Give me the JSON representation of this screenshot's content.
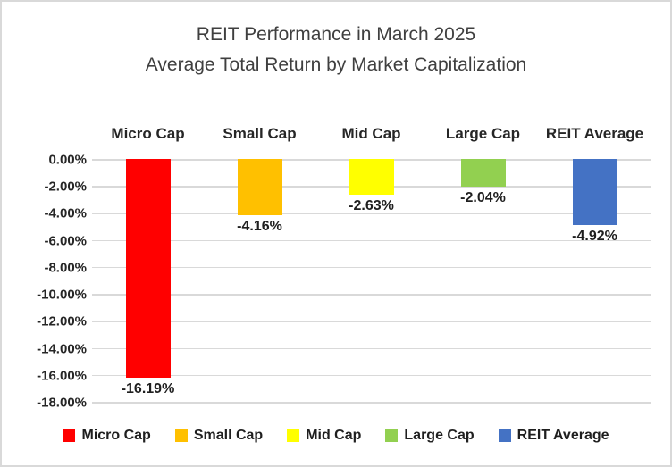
{
  "chart_data": {
    "type": "bar",
    "title": "REIT Performance in March 2025\nAverage Total Return by Market Capitalization",
    "title_lines": [
      "REIT Performance in March 2025",
      "Average Total Return by Market Capitalization"
    ],
    "categories": [
      "Micro Cap",
      "Small Cap",
      "Mid Cap",
      "Large Cap",
      "REIT Average"
    ],
    "values": [
      -16.19,
      -4.16,
      -2.63,
      -2.04,
      -4.92
    ],
    "data_labels": [
      "-16.19%",
      "-4.16%",
      "-2.63%",
      "-2.04%",
      "-4.92%"
    ],
    "bar_colors": [
      "#ff0000",
      "#ffc000",
      "#ffff00",
      "#92d050",
      "#4472c4"
    ],
    "y_ticks": [
      "0.00%",
      "-2.00%",
      "-4.00%",
      "-6.00%",
      "-8.00%",
      "-10.00%",
      "-12.00%",
      "-14.00%",
      "-16.00%",
      "-18.00%"
    ],
    "ylim": [
      -18,
      0
    ],
    "xlabel": "",
    "ylabel": "",
    "grid": true,
    "gridline_color": "#d9d9d9",
    "legend_position": "bottom",
    "legend": [
      {
        "label": "Micro Cap",
        "color": "#ff0000"
      },
      {
        "label": "Small Cap",
        "color": "#ffc000"
      },
      {
        "label": "Mid Cap",
        "color": "#ffff00"
      },
      {
        "label": "Large Cap",
        "color": "#92d050"
      },
      {
        "label": "REIT Average",
        "color": "#4472c4"
      }
    ]
  }
}
